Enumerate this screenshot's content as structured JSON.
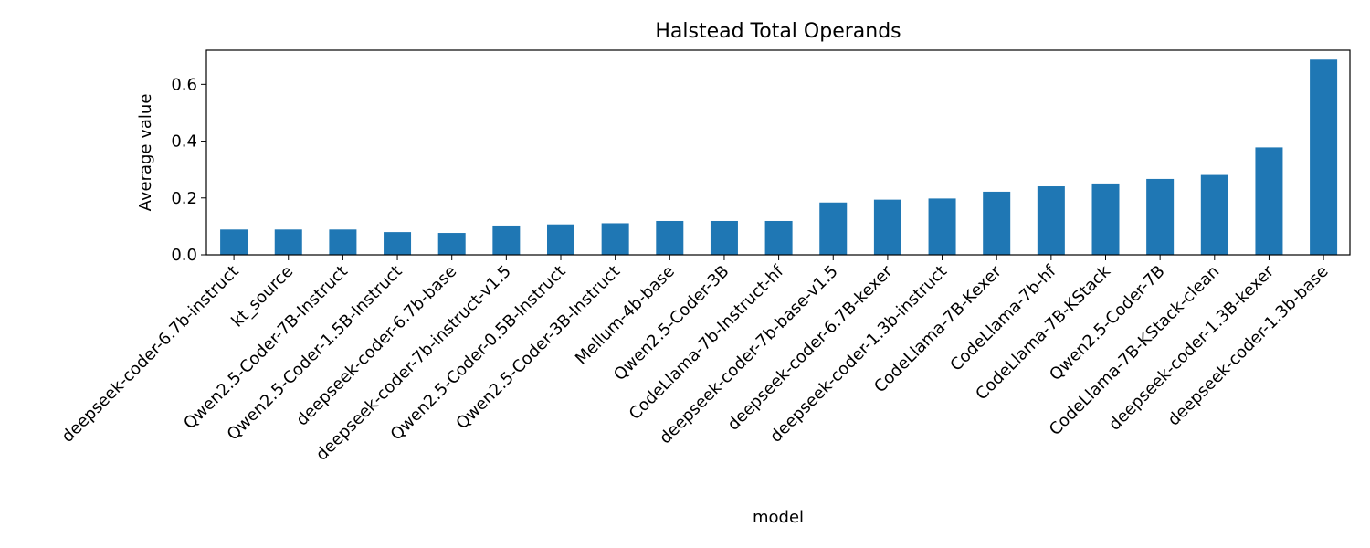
{
  "chart_data": {
    "type": "bar",
    "title": "Halstead Total Operands",
    "xlabel": "model",
    "ylabel": "Average value",
    "ylim": [
      0,
      0.72
    ],
    "yticks": [
      0.0,
      0.2,
      0.4,
      0.6
    ],
    "ytick_labels": [
      "0.0",
      "0.2",
      "0.4",
      "0.6"
    ],
    "grid": false,
    "bar_color": "#1f77b4",
    "categories": [
      "deepseek-coder-6.7b-instruct",
      "kt_source",
      "Qwen2.5-Coder-7B-Instruct",
      "Qwen2.5-Coder-1.5B-Instruct",
      "deepseek-coder-6.7b-base",
      "deepseek-coder-7b-instruct-v1.5",
      "Qwen2.5-Coder-0.5B-Instruct",
      "Qwen2.5-Coder-3B-Instruct",
      "Mellum-4b-base",
      "Qwen2.5-Coder-3B",
      "CodeLlama-7b-Instruct-hf",
      "deepseek-coder-7b-base-v1.5",
      "deepseek-coder-6.7B-kexer",
      "deepseek-coder-1.3b-instruct",
      "CodeLlama-7B-Kexer",
      "CodeLlama-7b-hf",
      "CodeLlama-7B-KStack",
      "Qwen2.5-Coder-7B",
      "CodeLlama-7B-KStack-clean",
      "deepseek-coder-1.3B-kexer",
      "deepseek-coder-1.3b-base"
    ],
    "values": [
      0.089,
      0.089,
      0.089,
      0.08,
      0.077,
      0.103,
      0.107,
      0.111,
      0.119,
      0.119,
      0.119,
      0.184,
      0.194,
      0.198,
      0.222,
      0.241,
      0.251,
      0.267,
      0.281,
      0.378,
      0.687
    ]
  }
}
